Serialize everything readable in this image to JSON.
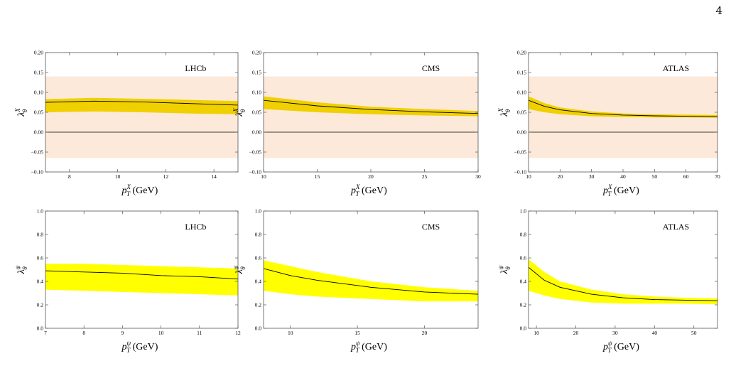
{
  "page_number": "4",
  "colors": {
    "band_shade": "#fde9d9",
    "error_band": "#f0d000",
    "error_band_bottom": "#ffff00",
    "line": "#000000"
  },
  "chart_data": [
    {
      "type": "area",
      "experiment": "LHCb",
      "xlabel": {
        "base": "p",
        "sub": "T",
        "sup": "X",
        "unit": " (GeV)"
      },
      "ylabel": {
        "base": "λ",
        "sub": "θ",
        "sup": "X"
      },
      "xlim": [
        7,
        15
      ],
      "ylim": [
        -0.1,
        0.2
      ],
      "xticks": [
        8,
        10,
        12,
        14
      ],
      "yticks": [
        -0.1,
        -0.05,
        0.0,
        0.05,
        0.1,
        0.15,
        0.2
      ],
      "ytick_labels": [
        "−0.10",
        "−0.05",
        "0.00",
        "0.05",
        "0.10",
        "0.15",
        "0.20"
      ],
      "shaded_band": [
        -0.065,
        0.14
      ],
      "zero_line": true,
      "x": [
        7,
        9,
        11,
        13,
        15
      ],
      "central": [
        0.075,
        0.078,
        0.076,
        0.072,
        0.068
      ],
      "upper": [
        0.083,
        0.086,
        0.084,
        0.081,
        0.078
      ],
      "lower": [
        0.05,
        0.052,
        0.05,
        0.047,
        0.045
      ]
    },
    {
      "type": "area",
      "experiment": "CMS",
      "xlabel": {
        "base": "p",
        "sub": "T",
        "sup": "X",
        "unit": " (GeV)"
      },
      "ylabel": {
        "base": "λ",
        "sub": "θ",
        "sup": "X"
      },
      "xlim": [
        10,
        30
      ],
      "ylim": [
        -0.1,
        0.2
      ],
      "xticks": [
        10,
        15,
        20,
        25,
        30
      ],
      "yticks": [
        -0.1,
        -0.05,
        0.0,
        0.05,
        0.1,
        0.15,
        0.2
      ],
      "ytick_labels": [
        "−0.10",
        "−0.05",
        "0.00",
        "0.05",
        "0.10",
        "0.15",
        "0.20"
      ],
      "shaded_band": [
        -0.065,
        0.14
      ],
      "zero_line": true,
      "x": [
        10,
        15,
        20,
        25,
        30
      ],
      "central": [
        0.08,
        0.066,
        0.057,
        0.051,
        0.047
      ],
      "upper": [
        0.09,
        0.075,
        0.064,
        0.058,
        0.053
      ],
      "lower": [
        0.058,
        0.05,
        0.045,
        0.042,
        0.04
      ]
    },
    {
      "type": "area",
      "experiment": "ATLAS",
      "xlabel": {
        "base": "p",
        "sub": "T",
        "sup": "X",
        "unit": " (GeV)"
      },
      "ylabel": {
        "base": "λ",
        "sub": "θ",
        "sup": "X"
      },
      "xlim": [
        10,
        70
      ],
      "ylim": [
        -0.1,
        0.2
      ],
      "xticks": [
        10,
        20,
        30,
        40,
        50,
        60,
        70
      ],
      "yticks": [
        -0.1,
        -0.05,
        0.0,
        0.05,
        0.1,
        0.15,
        0.2
      ],
      "ytick_labels": [
        "−0.10",
        "−0.05",
        "0.00",
        "0.05",
        "0.10",
        "0.15",
        "0.20"
      ],
      "shaded_band": [
        -0.065,
        0.14
      ],
      "zero_line": true,
      "x": [
        10,
        15,
        20,
        30,
        40,
        50,
        60,
        70
      ],
      "central": [
        0.08,
        0.065,
        0.056,
        0.047,
        0.043,
        0.041,
        0.04,
        0.039
      ],
      "upper": [
        0.09,
        0.073,
        0.062,
        0.052,
        0.047,
        0.045,
        0.044,
        0.043
      ],
      "lower": [
        0.058,
        0.05,
        0.045,
        0.04,
        0.038,
        0.037,
        0.037,
        0.036
      ]
    },
    {
      "type": "area",
      "experiment": "LHCb",
      "xlabel": {
        "base": "p",
        "sub": "T",
        "sup": "ψ",
        "unit": " (GeV)"
      },
      "ylabel": {
        "base": "λ",
        "sub": "θ",
        "sup": "ψ"
      },
      "xlim": [
        7,
        12
      ],
      "ylim": [
        0.0,
        1.0
      ],
      "xticks": [
        7,
        8,
        9,
        10,
        11,
        12
      ],
      "yticks": [
        0.0,
        0.2,
        0.4,
        0.6,
        0.8,
        1.0
      ],
      "ytick_labels": [
        "0.0",
        "0.2",
        "0.4",
        "0.6",
        "0.8",
        "1.0"
      ],
      "zero_line": false,
      "x": [
        7,
        8,
        9,
        10,
        11,
        12
      ],
      "central": [
        0.49,
        0.48,
        0.47,
        0.45,
        0.44,
        0.42
      ],
      "upper": [
        0.55,
        0.55,
        0.54,
        0.53,
        0.52,
        0.51
      ],
      "lower": [
        0.33,
        0.32,
        0.31,
        0.3,
        0.29,
        0.28
      ]
    },
    {
      "type": "area",
      "experiment": "CMS",
      "xlabel": {
        "base": "p",
        "sub": "T",
        "sup": "ψ",
        "unit": " (GeV)"
      },
      "ylabel": {
        "base": "λ",
        "sub": "θ",
        "sup": "ψ"
      },
      "xlim": [
        8,
        24
      ],
      "ylim": [
        0.0,
        1.0
      ],
      "xticks": [
        10,
        15,
        20
      ],
      "yticks": [
        0.0,
        0.2,
        0.4,
        0.6,
        0.8,
        1.0
      ],
      "ytick_labels": [
        "0.0",
        "0.2",
        "0.4",
        "0.6",
        "0.8",
        "1.0"
      ],
      "zero_line": false,
      "x": [
        8,
        10,
        12,
        16,
        20,
        24
      ],
      "central": [
        0.51,
        0.45,
        0.41,
        0.35,
        0.31,
        0.29
      ],
      "upper": [
        0.58,
        0.53,
        0.48,
        0.4,
        0.35,
        0.32
      ],
      "lower": [
        0.32,
        0.29,
        0.27,
        0.25,
        0.23,
        0.23
      ]
    },
    {
      "type": "area",
      "experiment": "ATLAS",
      "xlabel": {
        "base": "p",
        "sub": "T",
        "sup": "ψ",
        "unit": " (GeV)"
      },
      "ylabel": {
        "base": "λ",
        "sub": "θ",
        "sup": "ψ"
      },
      "xlim": [
        8,
        56
      ],
      "ylim": [
        0.0,
        1.0
      ],
      "xticks": [
        10,
        20,
        30,
        40,
        50
      ],
      "yticks": [
        0.0,
        0.2,
        0.4,
        0.6,
        0.8,
        1.0
      ],
      "ytick_labels": [
        "0.0",
        "0.2",
        "0.4",
        "0.6",
        "0.8",
        "1.0"
      ],
      "zero_line": false,
      "x": [
        8,
        12,
        16,
        24,
        32,
        40,
        48,
        56
      ],
      "central": [
        0.52,
        0.41,
        0.35,
        0.29,
        0.26,
        0.245,
        0.24,
        0.235
      ],
      "upper": [
        0.59,
        0.48,
        0.4,
        0.33,
        0.29,
        0.27,
        0.26,
        0.255
      ],
      "lower": [
        0.32,
        0.28,
        0.25,
        0.22,
        0.21,
        0.21,
        0.21,
        0.205
      ]
    }
  ]
}
